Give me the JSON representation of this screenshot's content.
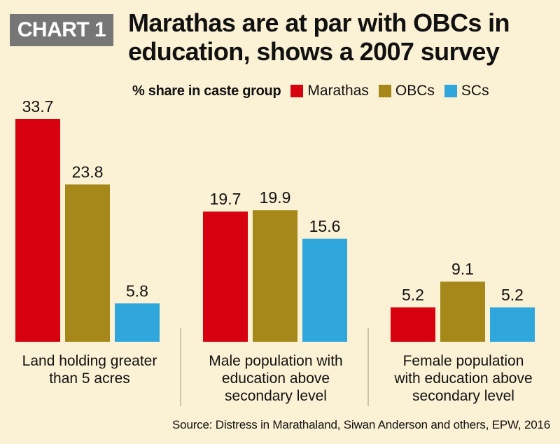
{
  "tag": "CHART 1",
  "title_line1": "Marathas are at par with OBCs in",
  "title_line2": "education, shows a 2007 survey",
  "legend_caption": "% share in caste group",
  "source": "Source: Distress in Marathaland, Siwan Anderson and others, EPW, 2016",
  "colors": {
    "background": "#fbf1d4",
    "tag": "#767676",
    "Marathas": "#d6000f",
    "OBCs": "#a5871a",
    "SCs": "#2fa6dc"
  },
  "chart_data": {
    "type": "bar",
    "title": "Marathas are at par with OBCs in education, shows a 2007 survey",
    "ylabel": "% share in caste group",
    "categories": [
      "Land holding greater than 5 acres",
      "Male population with education above secondary level",
      "Female population with education above secondary level"
    ],
    "category_lines": [
      [
        "Land holding greater",
        "than 5 acres"
      ],
      [
        "Male population with",
        "education above",
        "secondary level"
      ],
      [
        "Female population",
        "with education above",
        "secondary level"
      ]
    ],
    "series": [
      {
        "name": "Marathas",
        "values": [
          33.7,
          19.7,
          5.2
        ]
      },
      {
        "name": "OBCs",
        "values": [
          23.8,
          19.9,
          9.1
        ]
      },
      {
        "name": "SCs",
        "values": [
          5.8,
          15.6,
          5.2
        ]
      }
    ],
    "ylim": [
      0,
      33.7
    ],
    "grid": false,
    "legend_position": "top"
  }
}
